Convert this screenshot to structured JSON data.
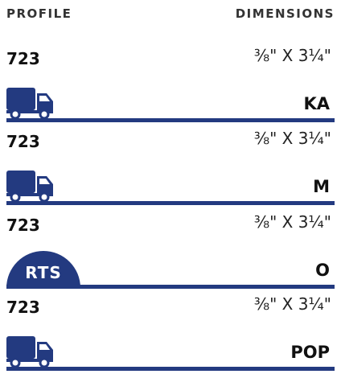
{
  "header": {
    "profile": "PROFILE",
    "dimensions": "DIMENSIONS"
  },
  "rows": [
    {
      "profile": "723",
      "dimensions": "⅜\" X 3¼\"",
      "code": "KA"
    },
    {
      "profile": "723",
      "dimensions": "⅜\" X 3¼\"",
      "code": "M"
    },
    {
      "profile": "723",
      "dimensions": "⅜\" X 3¼\"",
      "code": "O",
      "badge": "RTS"
    },
    {
      "profile": "723",
      "dimensions": "⅜\" X 3¼\"",
      "code": "POP"
    }
  ]
}
